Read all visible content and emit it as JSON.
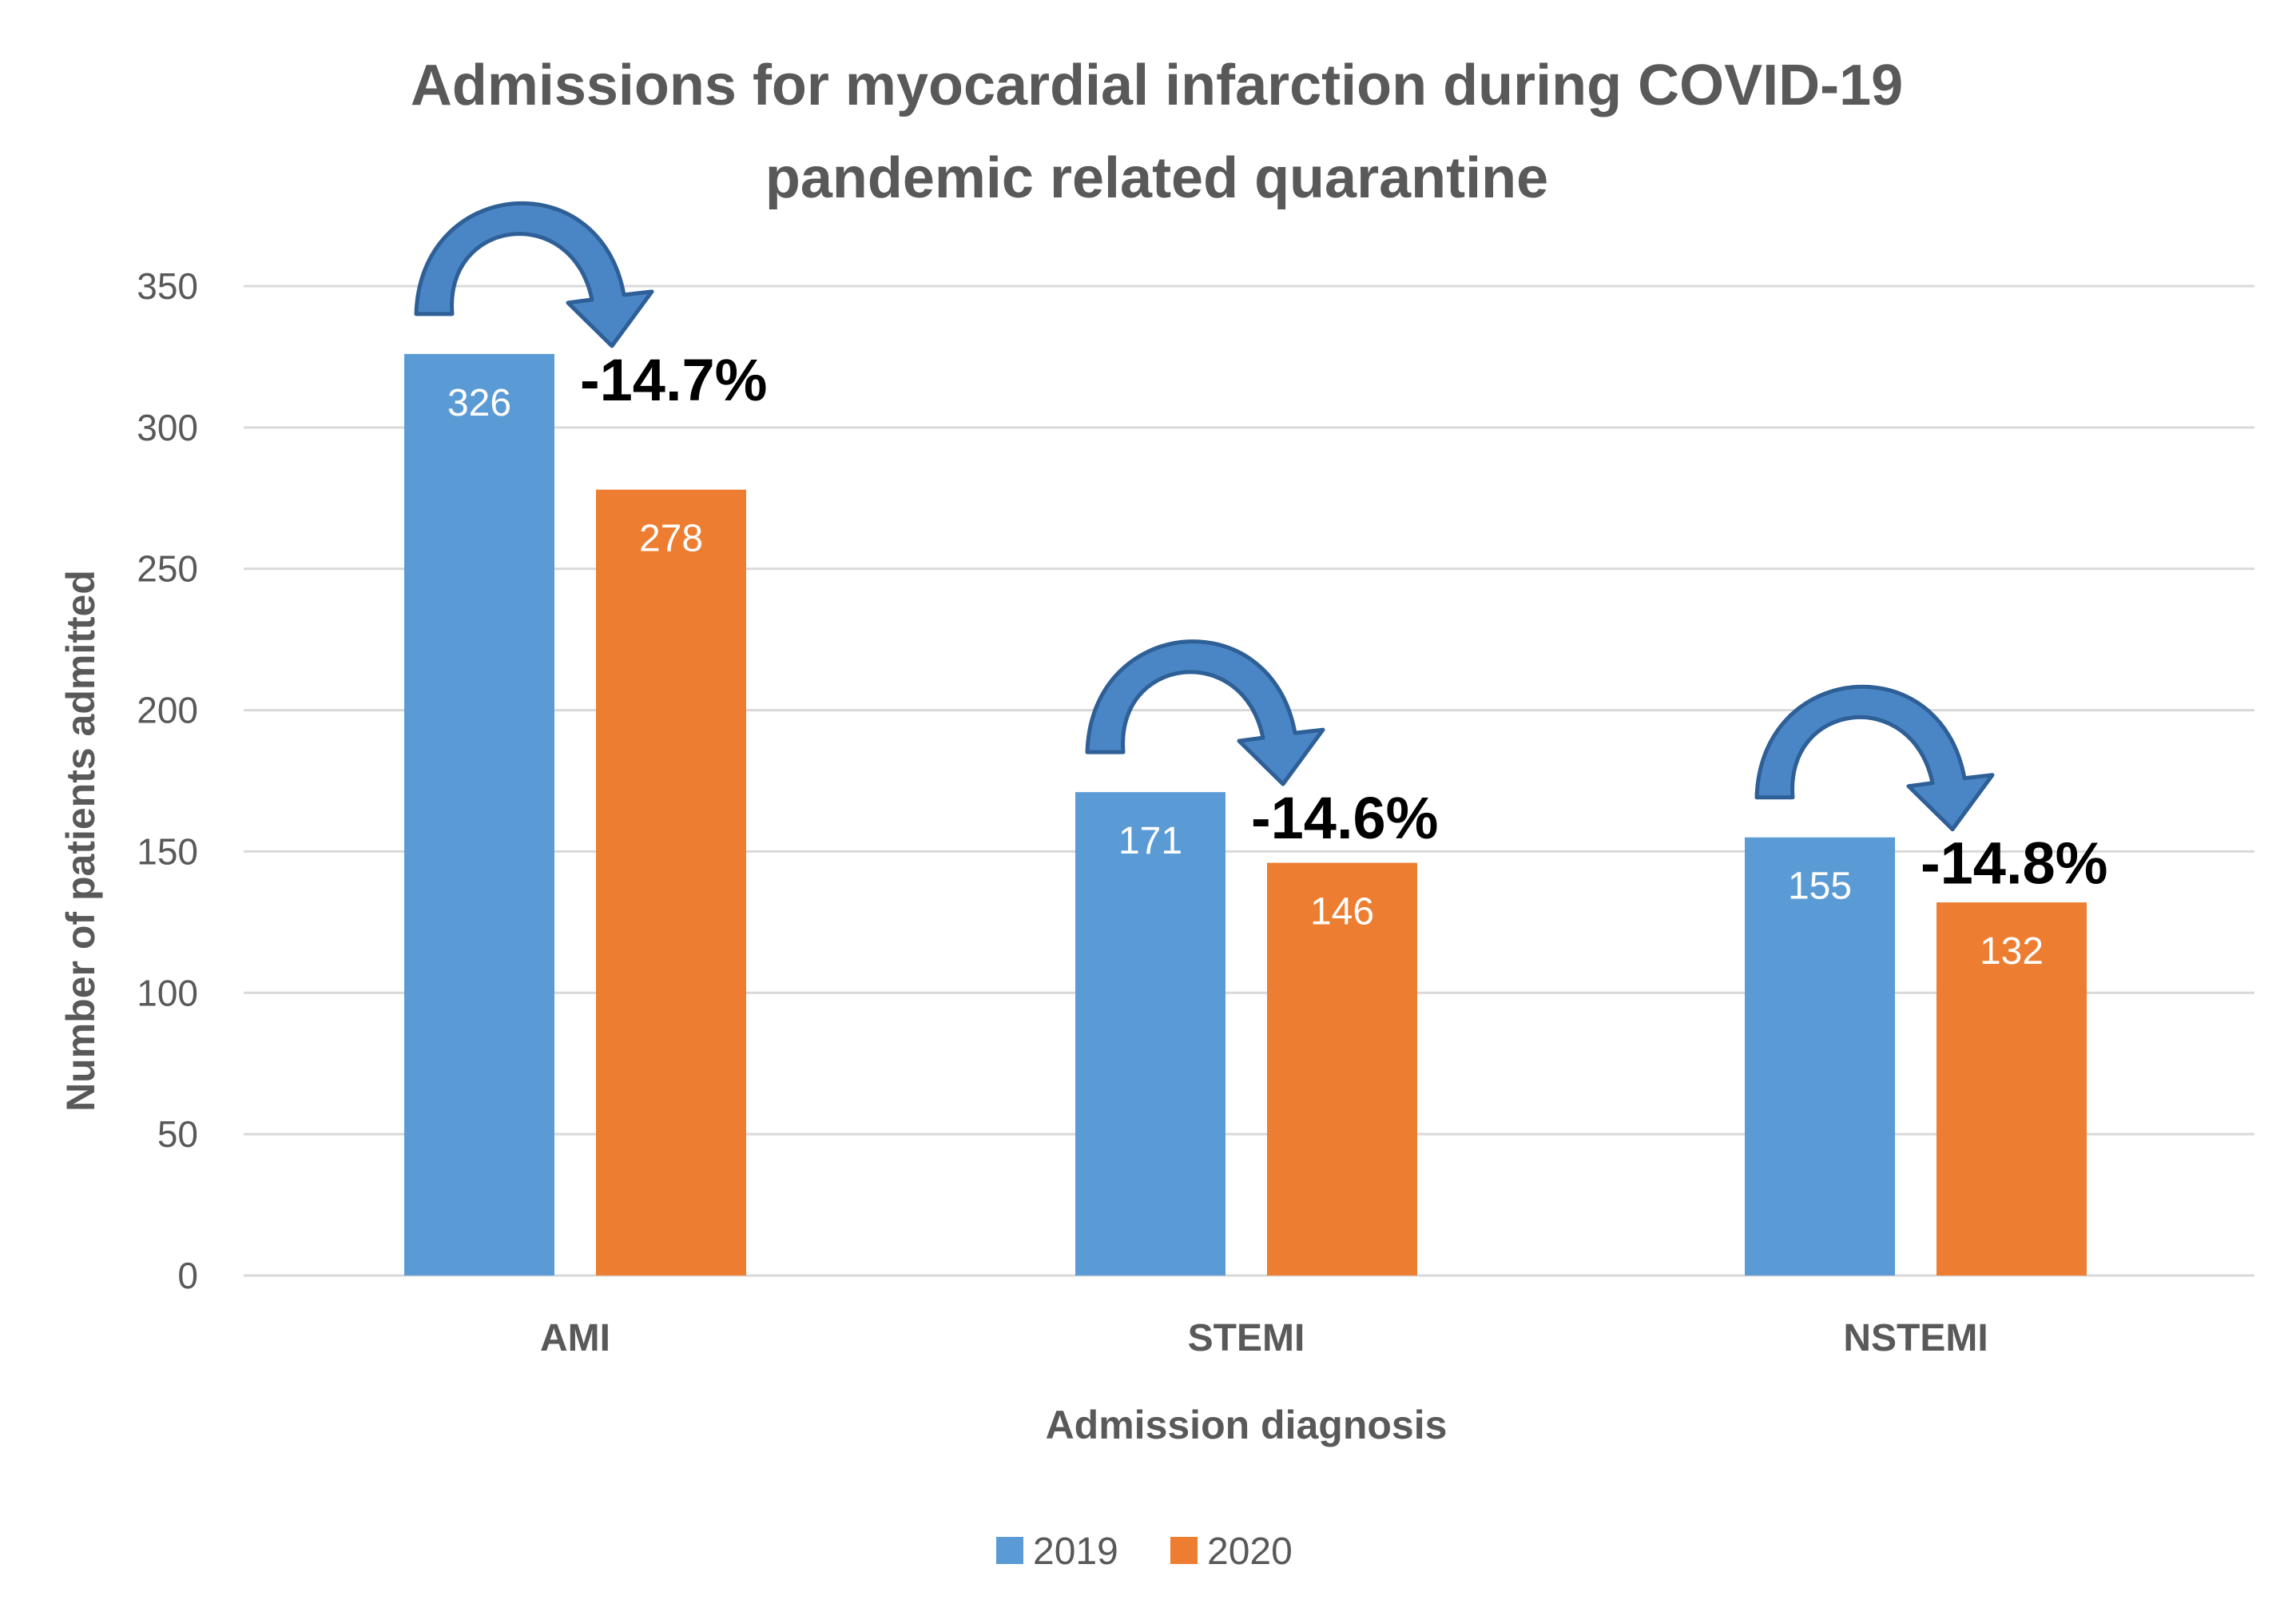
{
  "chart_data": {
    "type": "bar",
    "title": "Admissions for myocardial infarction during COVID-19 pandemic related quarantine",
    "title_lines": [
      "Admissions for myocardial infarction during COVID-19",
      "pandemic related quarantine"
    ],
    "xlabel": "Admission diagnosis",
    "ylabel": "Number of patients admitted",
    "ylim": [
      0,
      350
    ],
    "yticks": [
      0,
      50,
      100,
      150,
      200,
      250,
      300,
      350
    ],
    "categories": [
      "AMI",
      "STEMI",
      "NSTEMI"
    ],
    "series": [
      {
        "name": "2019",
        "values": [
          326,
          171,
          155
        ],
        "color": "#5B9BD5"
      },
      {
        "name": "2020",
        "values": [
          278,
          146,
          132
        ],
        "color": "#ED7D31"
      }
    ],
    "annotations": [
      "-14.7%",
      "-14.6%",
      "-14.8%"
    ],
    "grid": true,
    "legend_position": "bottom-center"
  },
  "colors": {
    "title": "#595959",
    "axis_text": "#595959",
    "gridline": "#D9D9D9",
    "annotation_text": "#000000",
    "arrow_fill": "#4A86C5",
    "arrow_stroke": "#2E5F96",
    "bar_label": "#FFFFFF"
  }
}
